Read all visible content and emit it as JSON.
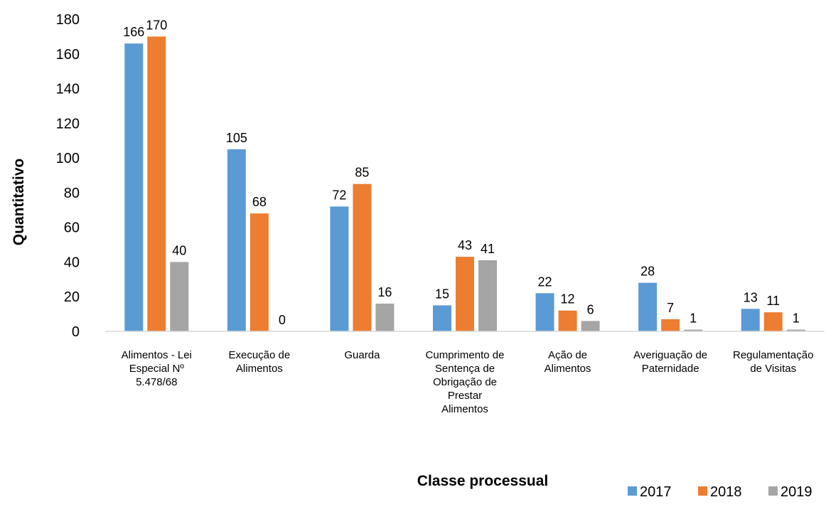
{
  "chart_data": {
    "type": "bar",
    "title": "",
    "xlabel": "Classe processual",
    "ylabel": "Quantitativo",
    "ylim": [
      0,
      180
    ],
    "ytick_step": 20,
    "grid": false,
    "legend_position": "bottom-right",
    "categories": [
      [
        "Alimentos - Lei",
        "Especial Nº",
        "5.478/68"
      ],
      [
        "Execução de",
        "Alimentos"
      ],
      [
        "Guarda"
      ],
      [
        "Cumprimento de",
        "Sentença de",
        "Obrigação de",
        "Prestar",
        "Alimentos"
      ],
      [
        "Ação de",
        "Alimentos"
      ],
      [
        "Averiguação de",
        "Paternidade"
      ],
      [
        "Regulamentação",
        "de Visitas"
      ]
    ],
    "series": [
      {
        "name": "2017",
        "color": "#5B9BD5",
        "values": [
          166,
          105,
          72,
          15,
          22,
          28,
          13
        ]
      },
      {
        "name": "2018",
        "color": "#ED7D31",
        "values": [
          170,
          68,
          85,
          43,
          12,
          7,
          11
        ]
      },
      {
        "name": "2019",
        "color": "#A5A5A5",
        "values": [
          40,
          0,
          16,
          41,
          6,
          1,
          1
        ]
      }
    ]
  }
}
